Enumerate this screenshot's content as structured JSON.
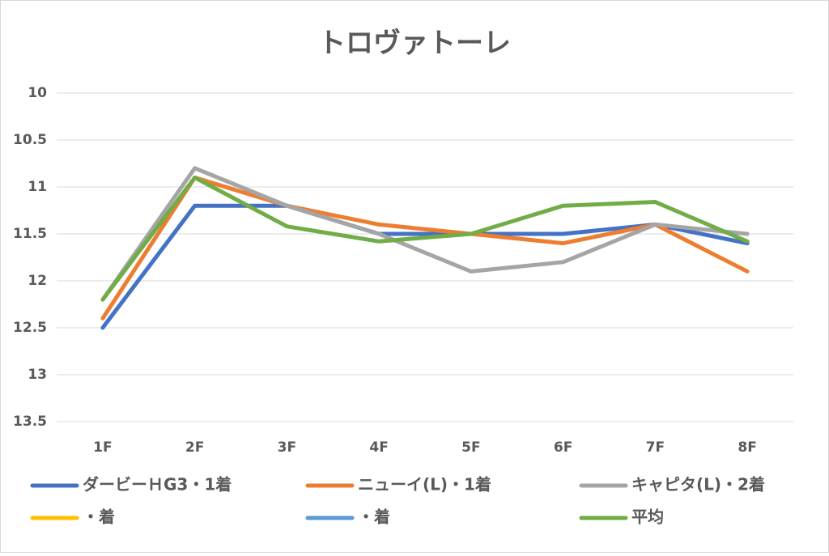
{
  "chart_data": {
    "type": "line",
    "title": "トロヴァトーレ",
    "categories": [
      "1F",
      "2F",
      "3F",
      "4F",
      "5F",
      "6F",
      "7F",
      "8F"
    ],
    "series": [
      {
        "name": "ダービーＨG3・1着",
        "color": "#4472c4",
        "values": [
          12.5,
          11.2,
          11.2,
          11.5,
          11.5,
          11.5,
          11.4,
          11.6
        ]
      },
      {
        "name": "ニューイ(L)・1着",
        "color": "#ed7d31",
        "values": [
          12.4,
          10.9,
          11.2,
          11.4,
          11.5,
          11.6,
          11.4,
          11.9
        ]
      },
      {
        "name": "キャピタ(L)・2着",
        "color": "#a5a5a5",
        "values": [
          12.2,
          10.8,
          11.2,
          11.5,
          11.9,
          11.8,
          11.4,
          11.5
        ]
      },
      {
        "name": "・着",
        "color": "#ffc000",
        "values": [
          null,
          null,
          null,
          null,
          null,
          null,
          null,
          null
        ]
      },
      {
        "name": "・着",
        "color": "#5b9bd5",
        "values": [
          null,
          null,
          null,
          null,
          null,
          null,
          null,
          null
        ]
      },
      {
        "name": "平均",
        "color": "#70ad47",
        "values": [
          12.2,
          10.9,
          11.42,
          11.58,
          11.5,
          11.2,
          11.16,
          11.58
        ]
      }
    ],
    "ylim": [
      10,
      13.5
    ],
    "y_inverted": true,
    "yticks": [
      10,
      10.5,
      11,
      11.5,
      12,
      12.5,
      13,
      13.5
    ],
    "grid": true,
    "legend": "bottom"
  }
}
